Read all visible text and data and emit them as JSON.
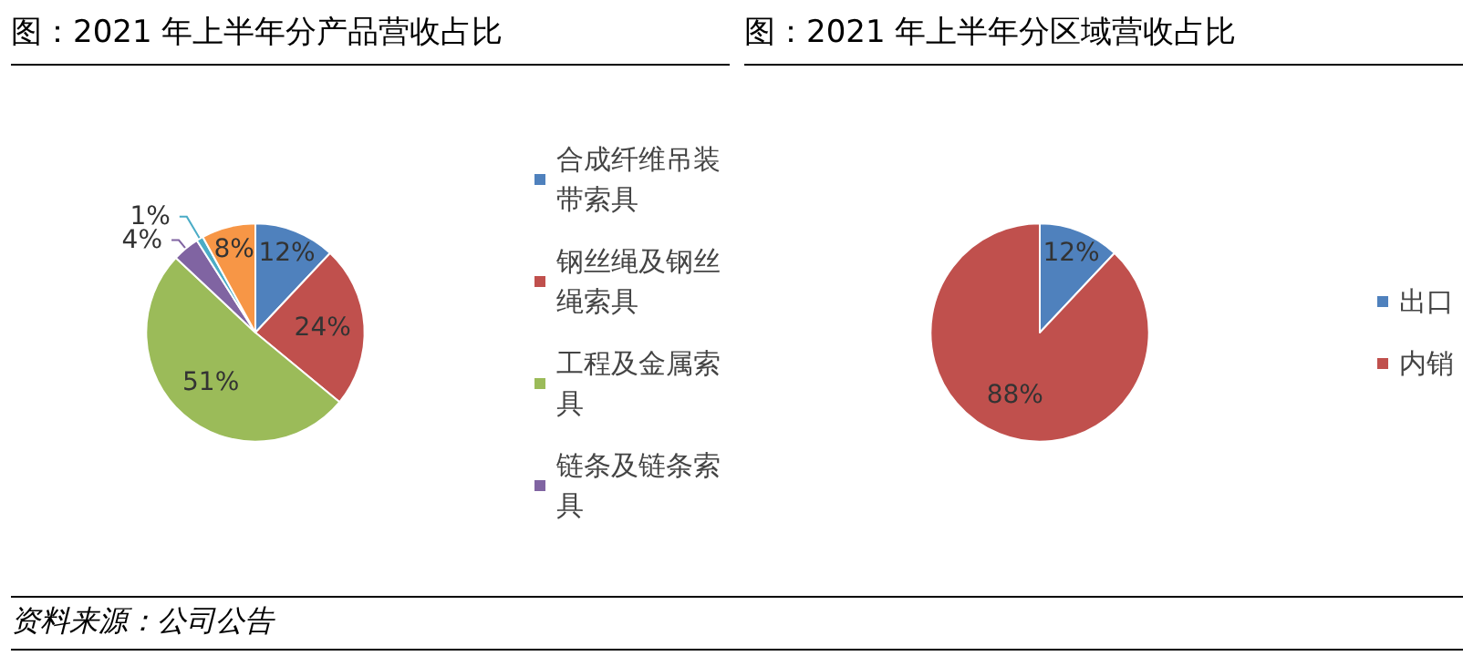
{
  "chart_data": [
    {
      "type": "pie",
      "title": "图：2021 年上半年分产品营收占比",
      "categories": [
        "合成纤维吊装带索具",
        "钢丝绳及钢丝绳索具",
        "工程及金属索具",
        "链条及链条索具",
        null,
        null
      ],
      "values": [
        12,
        24,
        51,
        4,
        1,
        8
      ],
      "colors": [
        "#4f81bd",
        "#c0504d",
        "#9bbb59",
        "#8064a2",
        "#4bacc6",
        "#f79646"
      ],
      "value_labels": [
        "12%",
        "24%",
        "51%",
        "4%",
        "1%",
        "8%"
      ],
      "legend": "right",
      "annotations": [
        "资料来源：公司公告"
      ]
    },
    {
      "type": "pie",
      "title": "图：2021 年上半年分区域营收占比",
      "categories": [
        "出口",
        "内销"
      ],
      "values": [
        12,
        88
      ],
      "colors": [
        "#4f81bd",
        "#c0504d"
      ],
      "value_labels": [
        "12%",
        "88%"
      ],
      "legend": "right"
    }
  ]
}
